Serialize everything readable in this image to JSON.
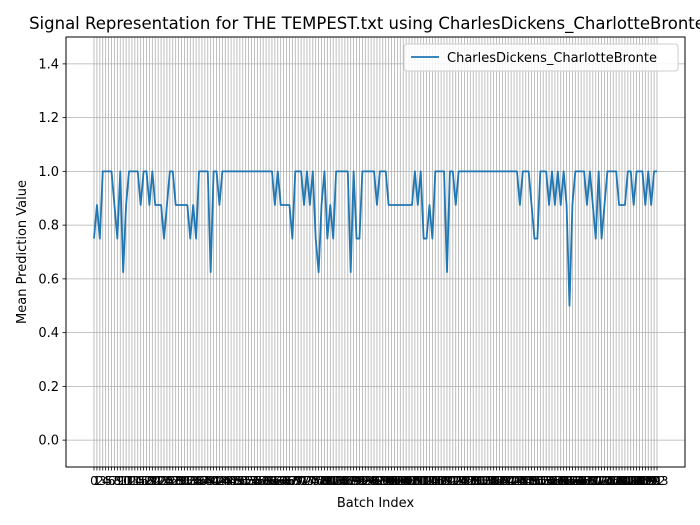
{
  "chart_data": {
    "type": "line",
    "title": "Signal Representation for THE TEMPEST.txt using CharlesDickens_CharlotteBronte",
    "xlabel": "Batch Index",
    "ylabel": "Mean Prediction Value",
    "ylim": [
      -0.1,
      1.5
    ],
    "yticks": [
      0.0,
      0.2,
      0.4,
      0.6,
      0.8,
      1.0,
      1.2,
      1.4
    ],
    "grid": true,
    "legend": "top-right",
    "series": [
      {
        "name": "CharlesDickens_CharlotteBronte",
        "color": "#1f77b4",
        "values": [
          0.75,
          0.875,
          0.75,
          1.0,
          1.0,
          1.0,
          1.0,
          0.875,
          0.75,
          1.0,
          0.625,
          0.875,
          1.0,
          1.0,
          1.0,
          1.0,
          0.875,
          1.0,
          1.0,
          0.875,
          1.0,
          0.875,
          0.875,
          0.875,
          0.75,
          0.875,
          1.0,
          1.0,
          0.875,
          0.875,
          0.875,
          0.875,
          0.875,
          0.75,
          0.875,
          0.75,
          1.0,
          1.0,
          1.0,
          1.0,
          0.625,
          1.0,
          1.0,
          0.875,
          1.0,
          1.0,
          1.0,
          1.0,
          1.0,
          1.0,
          1.0,
          1.0,
          1.0,
          1.0,
          1.0,
          1.0,
          1.0,
          1.0,
          1.0,
          1.0,
          1.0,
          1.0,
          0.875,
          1.0,
          0.875,
          0.875,
          0.875,
          0.875,
          0.75,
          1.0,
          1.0,
          1.0,
          0.875,
          1.0,
          0.875,
          1.0,
          0.75,
          0.625,
          0.875,
          1.0,
          0.75,
          0.875,
          0.75,
          1.0,
          1.0,
          1.0,
          1.0,
          1.0,
          0.625,
          1.0,
          0.75,
          0.75,
          1.0,
          1.0,
          1.0,
          1.0,
          1.0,
          0.875,
          1.0,
          1.0,
          1.0,
          0.875,
          0.875,
          0.875,
          0.875,
          0.875,
          0.875,
          0.875,
          0.875,
          0.875,
          1.0,
          0.875,
          1.0,
          0.75,
          0.75,
          0.875,
          0.75,
          1.0,
          1.0,
          1.0,
          1.0,
          0.625,
          1.0,
          1.0,
          0.875,
          1.0,
          1.0,
          1.0,
          1.0,
          1.0,
          1.0,
          1.0,
          1.0,
          1.0,
          1.0,
          1.0,
          1.0,
          1.0,
          1.0,
          1.0,
          1.0,
          1.0,
          1.0,
          1.0,
          1.0,
          1.0,
          0.875,
          1.0,
          1.0,
          1.0,
          0.875,
          0.75,
          0.75,
          1.0,
          1.0,
          1.0,
          0.875,
          1.0,
          0.875,
          1.0,
          0.875,
          1.0,
          0.875,
          0.5,
          0.875,
          1.0,
          1.0,
          1.0,
          1.0,
          0.875,
          1.0,
          0.875,
          0.75,
          1.0,
          0.75,
          0.875,
          1.0,
          1.0,
          1.0,
          1.0,
          0.875,
          0.875,
          0.875,
          1.0,
          1.0,
          0.875,
          1.0,
          1.0,
          1.0,
          0.875,
          1.0,
          0.875,
          1.0,
          1.0
        ]
      }
    ]
  }
}
